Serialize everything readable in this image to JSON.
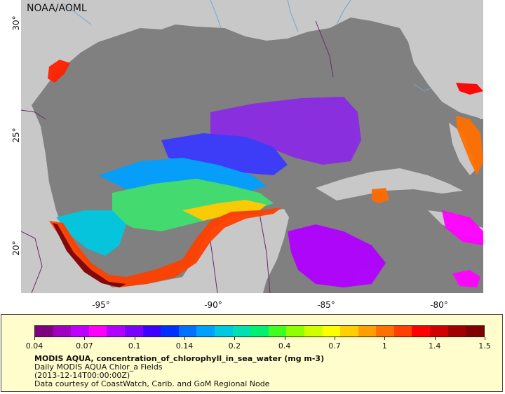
{
  "credit": "NOAA/AOML",
  "axes": {
    "x_ticks": [
      "-95°",
      "-90°",
      "-85°",
      "-80°"
    ],
    "y_ticks": [
      "30°",
      "25°",
      "20°"
    ]
  },
  "map": {
    "region": "Gulf of Mexico and Caribbean",
    "land_color": "#c8c8c8",
    "water_color": "#808080",
    "river_color": "#6fa6d6",
    "border_color": "#6a2a6a"
  },
  "legend": {
    "tick_labels": [
      "0.04",
      "0.07",
      "0.1",
      "0.14",
      "0.2",
      "0.4",
      "0.7",
      "1",
      "1.4",
      "1.5"
    ],
    "colors": [
      "#800080",
      "#a000c0",
      "#c000ff",
      "#ff00ff",
      "#b000ff",
      "#7a00ff",
      "#4000ff",
      "#0030ff",
      "#0070ff",
      "#00a0ff",
      "#00c8e0",
      "#00e0b0",
      "#00f070",
      "#40ff20",
      "#90ff00",
      "#d0ff00",
      "#ffff00",
      "#ffd000",
      "#ffa000",
      "#ff7000",
      "#ff4000",
      "#ff0000",
      "#d00000",
      "#a00000",
      "#800000"
    ],
    "title": "MODIS AQUA, concentration_of_chlorophyll_in_sea_water (mg m-3)",
    "line1": "Daily MODIS AQUA Chlor_a Fields",
    "line2": "(2013-12-14T00:00:00Z)",
    "line3": "Data courtesy of CoastWatch, Carib. and GoM Regional Node"
  }
}
